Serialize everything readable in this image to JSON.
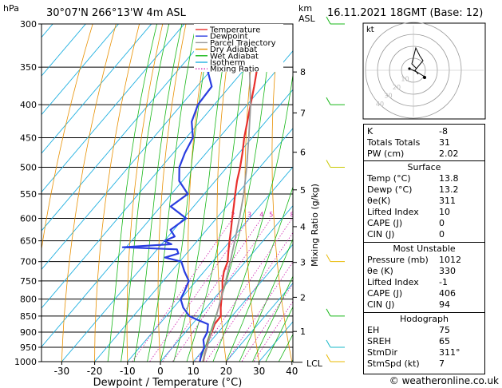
{
  "header": {
    "station": "30°07'N  266°13'W  4m  ASL",
    "datetime": "16.11.2021  18GMT  (Base: 12)"
  },
  "axes": {
    "pressure_unit": "hPa",
    "height_unit_1": "km",
    "height_unit_2": "ASL",
    "xlabel": "Dewpoint / Temperature (°C)",
    "mixing_ratio_label": "Mixing Ratio (g/kg)",
    "lcl_label": "LCL"
  },
  "legend": {
    "items": [
      {
        "label": "Temperature",
        "color": "#e8302c"
      },
      {
        "label": "Dewpoint",
        "color": "#2a3de0"
      },
      {
        "label": "Parcel Trajectory",
        "color": "#999999"
      },
      {
        "label": "Dry Adiabat",
        "color": "#e89000"
      },
      {
        "label": "Wet Adiabat",
        "color": "#18b818"
      },
      {
        "label": "Isotherm",
        "color": "#20b0e0"
      },
      {
        "label": "Mixing Ratio",
        "color": "#d020b0"
      }
    ]
  },
  "chart_data": {
    "type": "line",
    "chart_kind": "skew-T log-P diagram",
    "xlim": [
      -35,
      40
    ],
    "ylim_hpa": [
      1000,
      300
    ],
    "y_scale": "log",
    "pressure_ticks": [
      300,
      350,
      400,
      450,
      500,
      550,
      600,
      650,
      700,
      750,
      800,
      850,
      900,
      950,
      1000
    ],
    "temp_ticks": [
      -30,
      -20,
      -10,
      0,
      10,
      20,
      30,
      40
    ],
    "height_km_ticks": [
      {
        "label": "1",
        "p": 898
      },
      {
        "label": "2",
        "p": 795
      },
      {
        "label": "3",
        "p": 702
      },
      {
        "label": "4",
        "p": 618
      },
      {
        "label": "5",
        "p": 542
      },
      {
        "label": "6",
        "p": 474
      },
      {
        "label": "7",
        "p": 412
      },
      {
        "label": "8",
        "p": 356
      }
    ],
    "mixing_ratio_labels": [
      "2",
      "3",
      "4",
      "5",
      "8",
      "10",
      "15",
      "20",
      "25"
    ],
    "mixing_ratio_values": [
      2,
      3,
      4,
      5,
      8,
      10,
      15,
      20,
      25
    ],
    "grid": true,
    "series": [
      {
        "name": "Temperature",
        "color": "#e8302c",
        "points": [
          [
            1012,
            13.8
          ],
          [
            1000,
            13.0
          ],
          [
            975,
            11.6
          ],
          [
            950,
            10.4
          ],
          [
            925,
            9.0
          ],
          [
            900,
            8.0
          ],
          [
            875,
            6.8
          ],
          [
            850,
            6.6
          ],
          [
            825,
            4.4
          ],
          [
            800,
            2.4
          ],
          [
            775,
            0.4
          ],
          [
            750,
            -2.0
          ],
          [
            725,
            -4.0
          ],
          [
            700,
            -5.4
          ],
          [
            675,
            -7.8
          ],
          [
            650,
            -10.2
          ],
          [
            625,
            -12.6
          ],
          [
            600,
            -15.2
          ],
          [
            575,
            -17.8
          ],
          [
            550,
            -20.6
          ],
          [
            525,
            -23.4
          ],
          [
            500,
            -26.0
          ],
          [
            475,
            -29.0
          ],
          [
            450,
            -32.4
          ],
          [
            425,
            -35.6
          ],
          [
            400,
            -39.0
          ],
          [
            375,
            -42.6
          ],
          [
            350,
            -46.6
          ],
          [
            325,
            -50.4
          ],
          [
            300,
            -55.0
          ]
        ]
      },
      {
        "name": "Dewpoint",
        "color": "#2a3de0",
        "points": [
          [
            1012,
            13.2
          ],
          [
            1000,
            12.0
          ],
          [
            975,
            10.6
          ],
          [
            950,
            9.6
          ],
          [
            925,
            7.4
          ],
          [
            900,
            6.6
          ],
          [
            875,
            4.8
          ],
          [
            860,
            0
          ],
          [
            850,
            -3.0
          ],
          [
            825,
            -7.0
          ],
          [
            800,
            -10.0
          ],
          [
            775,
            -11.0
          ],
          [
            750,
            -12.2
          ],
          [
            725,
            -16.0
          ],
          [
            700,
            -19.5
          ],
          [
            690,
            -25.5
          ],
          [
            680,
            -22.5
          ],
          [
            670,
            -24.0
          ],
          [
            665,
            -41.0
          ],
          [
            658,
            -27.0
          ],
          [
            650,
            -30.0
          ],
          [
            640,
            -28.0
          ],
          [
            625,
            -31.0
          ],
          [
            600,
            -29.2
          ],
          [
            575,
            -37.0
          ],
          [
            550,
            -35.0
          ],
          [
            525,
            -41.0
          ],
          [
            500,
            -44.5
          ],
          [
            475,
            -46.5
          ],
          [
            450,
            -48.0
          ],
          [
            425,
            -52.5
          ],
          [
            400,
            -55.0
          ],
          [
            375,
            -55.5
          ],
          [
            350,
            -62.0
          ],
          [
            325,
            -66.0
          ],
          [
            300,
            -70.5
          ]
        ]
      },
      {
        "name": "Parcel Trajectory",
        "color": "#999999",
        "points": [
          [
            1012,
            13.8
          ],
          [
            1000,
            12.9
          ],
          [
            950,
            10.4
          ],
          [
            900,
            7.8
          ],
          [
            850,
            5.2
          ],
          [
            800,
            2.2
          ],
          [
            750,
            -1.0
          ],
          [
            700,
            -4.6
          ],
          [
            650,
            -8.6
          ],
          [
            600,
            -13.0
          ],
          [
            550,
            -18.0
          ],
          [
            500,
            -24.0
          ],
          [
            450,
            -31.0
          ],
          [
            400,
            -39.0
          ],
          [
            350,
            -49.0
          ],
          [
            300,
            -61.0
          ]
        ]
      }
    ]
  },
  "hodograph": {
    "label": "kt",
    "ring_labels": [
      "10",
      "20",
      "30",
      "40"
    ]
  },
  "indices": {
    "basic": [
      {
        "label": "K",
        "value": "-8"
      },
      {
        "label": "Totals Totals",
        "value": "31"
      },
      {
        "label": "PW (cm)",
        "value": "2.02"
      }
    ],
    "surface_title": "Surface",
    "surface": [
      {
        "label": "Temp (°C)",
        "value": "13.8"
      },
      {
        "label": "Dewp (°C)",
        "value": "13.2"
      },
      {
        "label": "θe(K)",
        "value": "311"
      },
      {
        "label": "Lifted Index",
        "value": "10"
      },
      {
        "label": "CAPE (J)",
        "value": "0"
      },
      {
        "label": "CIN (J)",
        "value": "0"
      }
    ],
    "unstable_title": "Most Unstable",
    "unstable": [
      {
        "label": "Pressure (mb)",
        "value": "1012"
      },
      {
        "label": "θe (K)",
        "value": "330"
      },
      {
        "label": "Lifted Index",
        "value": "-1"
      },
      {
        "label": "CAPE (J)",
        "value": "406"
      },
      {
        "label": "CIN (J)",
        "value": "94"
      }
    ],
    "hodo_title": "Hodograph",
    "hodo": [
      {
        "label": "EH",
        "value": "75"
      },
      {
        "label": "SREH",
        "value": "65"
      },
      {
        "label": "StmDir",
        "value": "311°"
      },
      {
        "label": "StmSpd (kt)",
        "value": "7"
      }
    ]
  },
  "copyright": "© weatheronline.co.uk"
}
